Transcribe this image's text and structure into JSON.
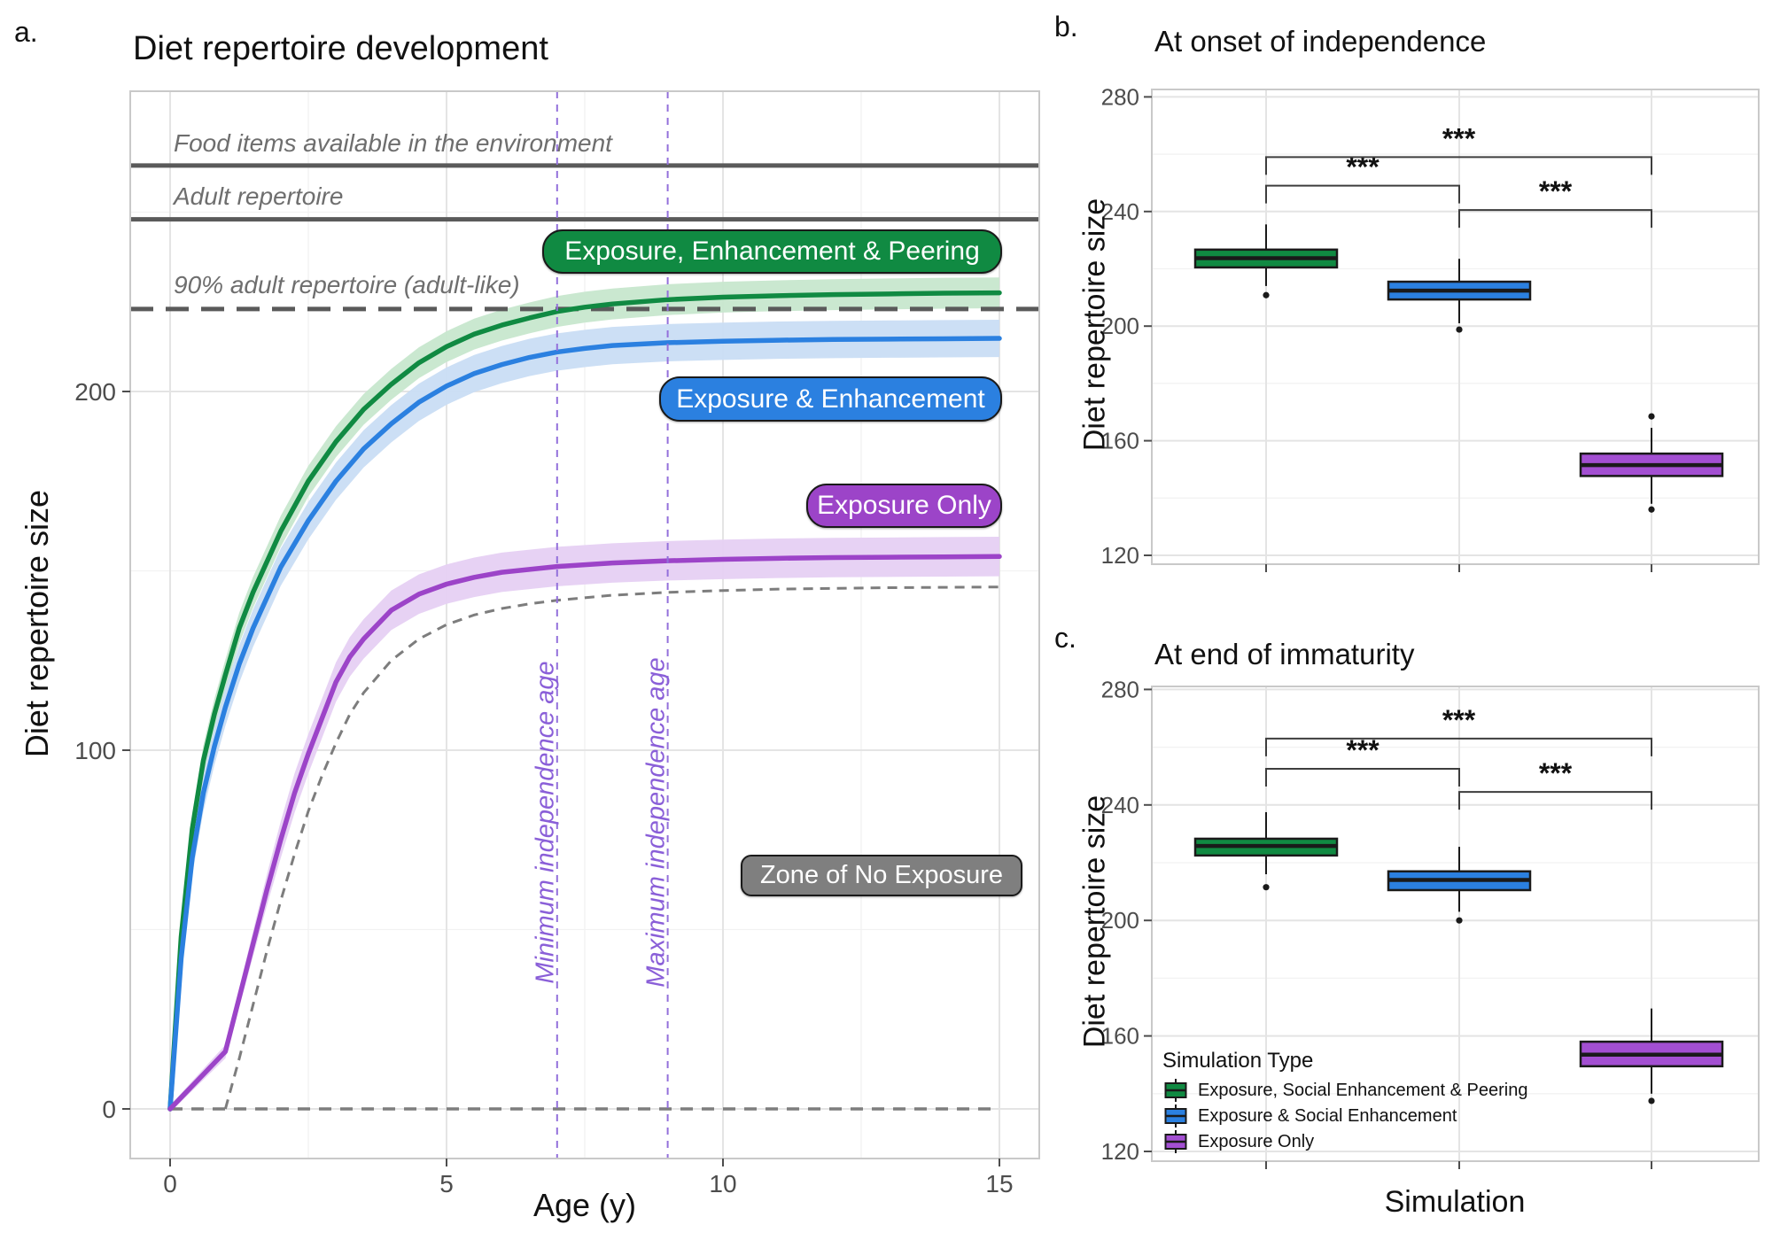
{
  "colors": {
    "green": "#108a42",
    "green_light": "#c7e7cd",
    "blue": "#2b80e0",
    "blue_light": "#c9ddf4",
    "purple": "#9c44c8",
    "purple_light": "#e6d0f3",
    "purple_box": "#a34fd2",
    "independence": "#9370db",
    "independence_text": "#8a5fd8",
    "annotation_gray": "#6e6e6e",
    "line_gray": "#5a5a5a",
    "dash_gray": "#7d7d7d",
    "zone_bg": "#7f7f7f",
    "tick_gray": "#4d4d4d",
    "sig": "#3d3d3d"
  },
  "panels": {
    "a": {
      "letter": "a.",
      "title": "Diet repertoire development",
      "xlabel": "Age (y)",
      "ylabel": "Diet repertoire size",
      "annotations": {
        "food": "Food items available in the environment",
        "adult": "Adult repertoire",
        "ninety": "90% adult repertoire (adult-like)",
        "min_indep": "Minimum independence age",
        "max_indep": "Maximum independence age",
        "zone": "Zone of No Exposure"
      },
      "curve_labels": {
        "green": "Exposure, Enhancement & Peering",
        "blue": "Exposure & Enhancement",
        "purple": "Exposure Only"
      }
    },
    "b": {
      "letter": "b.",
      "title": "At onset of independence",
      "ylabel": "Diet repertoire size"
    },
    "c": {
      "letter": "c.",
      "title": "At end of immaturity",
      "ylabel": "Diet repertoire size",
      "xlabel": "Simulation",
      "legend": {
        "title": "Simulation Type",
        "items": [
          {
            "label": "Exposure, Social Enhancement & Peering"
          },
          {
            "label": "Exposure & Social Enhancement"
          },
          {
            "label": "Exposure Only"
          }
        ]
      }
    }
  },
  "chart_data": [
    {
      "id": "a",
      "type": "line",
      "title": "Diet repertoire development",
      "xlabel": "Age (y)",
      "ylabel": "Diet repertoire size",
      "xlim": [
        -0.7,
        15.7
      ],
      "ylim": [
        -14,
        284
      ],
      "x_ticks": [
        0,
        5,
        10,
        15
      ],
      "y_ticks": [
        0,
        100,
        200
      ],
      "x_minor": [
        2.5,
        7.5,
        12.5
      ],
      "y_minor": [
        50,
        150,
        250
      ],
      "reference_lines": {
        "food_available": 263,
        "adult_repertoire": 248,
        "adult_like_90pct": 223,
        "zero_dashed": 0,
        "min_independence_age": 7,
        "max_independence_age": 9
      },
      "series": [
        {
          "name": "Exposure, Enhancement & Peering",
          "color_key": "green",
          "ribbon_key": "green_light",
          "ribbon": 4.3,
          "style": "solid",
          "points": [
            [
              0,
              0
            ],
            [
              0.2,
              48
            ],
            [
              0.4,
              78
            ],
            [
              0.6,
              97
            ],
            [
              0.8,
              110
            ],
            [
              1,
              121
            ],
            [
              1.25,
              134
            ],
            [
              1.5,
              144
            ],
            [
              2,
              161
            ],
            [
              2.5,
              175
            ],
            [
              3,
              186
            ],
            [
              3.5,
              195
            ],
            [
              4,
              202
            ],
            [
              4.5,
              208
            ],
            [
              5,
              212.5
            ],
            [
              5.5,
              216
            ],
            [
              6,
              218.5
            ],
            [
              6.5,
              220.5
            ],
            [
              7,
              222.3
            ],
            [
              7.5,
              223.5
            ],
            [
              8,
              224.4
            ],
            [
              9,
              225.6
            ],
            [
              10,
              226.3
            ],
            [
              11,
              226.7
            ],
            [
              12,
              227
            ],
            [
              13,
              227.2
            ],
            [
              14,
              227.4
            ],
            [
              15,
              227.5
            ]
          ]
        },
        {
          "name": "Exposure & Enhancement",
          "color_key": "blue",
          "ribbon_key": "blue_light",
          "ribbon": 5.2,
          "style": "solid",
          "points": [
            [
              0,
              0
            ],
            [
              0.2,
              42
            ],
            [
              0.4,
              70
            ],
            [
              0.6,
              88
            ],
            [
              0.8,
              101
            ],
            [
              1,
              112
            ],
            [
              1.25,
              124
            ],
            [
              1.5,
              134
            ],
            [
              2,
              151
            ],
            [
              2.5,
              164
            ],
            [
              3,
              175
            ],
            [
              3.5,
              184
            ],
            [
              4,
              191
            ],
            [
              4.5,
              197
            ],
            [
              5,
              201.5
            ],
            [
              5.5,
              205
            ],
            [
              6,
              207.5
            ],
            [
              6.5,
              209.5
            ],
            [
              7,
              211
            ],
            [
              7.5,
              212
            ],
            [
              8,
              212.8
            ],
            [
              9,
              213.6
            ],
            [
              10,
              214
            ],
            [
              11,
              214.3
            ],
            [
              12,
              214.5
            ],
            [
              13,
              214.6
            ],
            [
              14,
              214.7
            ],
            [
              15,
              214.8
            ]
          ]
        },
        {
          "name": "Exposure Only",
          "color_key": "purple",
          "ribbon_key": "purple_light",
          "ribbon": 5.5,
          "style": "solid",
          "points": [
            [
              0,
              0
            ],
            [
              0.25,
              4
            ],
            [
              0.5,
              8
            ],
            [
              0.75,
              12
            ],
            [
              1,
              16
            ],
            [
              1.25,
              31
            ],
            [
              1.5,
              46
            ],
            [
              1.75,
              61
            ],
            [
              2,
              75
            ],
            [
              2.25,
              88
            ],
            [
              2.5,
              99
            ],
            [
              2.75,
              109
            ],
            [
              3,
              119
            ],
            [
              3.25,
              126
            ],
            [
              3.5,
              131
            ],
            [
              4,
              139
            ],
            [
              4.5,
              143.5
            ],
            [
              5,
              146.3
            ],
            [
              5.5,
              148.2
            ],
            [
              6,
              149.6
            ],
            [
              6.5,
              150.4
            ],
            [
              7,
              151.2
            ],
            [
              8,
              152.2
            ],
            [
              9,
              152.8
            ],
            [
              10,
              153.2
            ],
            [
              11,
              153.5
            ],
            [
              12,
              153.7
            ],
            [
              13,
              153.8
            ],
            [
              14,
              153.9
            ],
            [
              15,
              154
            ]
          ]
        },
        {
          "name": "Zone of No Exposure boundary",
          "color_key": "dash_gray",
          "ribbon": 0,
          "style": "dashed",
          "points": [
            [
              1,
              0
            ],
            [
              1.25,
              14
            ],
            [
              1.5,
              29
            ],
            [
              1.75,
              44
            ],
            [
              2,
              58
            ],
            [
              2.25,
              71
            ],
            [
              2.5,
              83
            ],
            [
              2.75,
              93
            ],
            [
              3,
              102
            ],
            [
              3.25,
              110
            ],
            [
              3.5,
              116
            ],
            [
              4,
              125
            ],
            [
              4.5,
              131
            ],
            [
              5,
              135
            ],
            [
              5.5,
              137.7
            ],
            [
              6,
              139.5
            ],
            [
              6.5,
              140.8
            ],
            [
              7,
              141.8
            ],
            [
              8,
              143.2
            ],
            [
              9,
              144
            ],
            [
              10,
              144.5
            ],
            [
              11,
              144.9
            ],
            [
              12,
              145.1
            ],
            [
              13,
              145.3
            ],
            [
              14,
              145.4
            ],
            [
              15,
              145.5
            ]
          ]
        }
      ]
    },
    {
      "id": "b",
      "type": "boxplot",
      "title": "At onset of independence",
      "ylabel": "Diet repertoire size",
      "ylim": [
        120,
        280
      ],
      "y_ticks": [
        280,
        240,
        200,
        160,
        120
      ],
      "y_minor": [
        140,
        180,
        220,
        260
      ],
      "categories": [
        "Exposure, Social Enhancement & Peering",
        "Exposure & Social Enhancement",
        "Exposure Only"
      ],
      "boxes": [
        {
          "color_key": "green",
          "whisker_low": 214,
          "q1": 220.5,
          "median": 223.7,
          "q3": 226.7,
          "whisker_high": 235.5,
          "outliers": [
            210.8
          ]
        },
        {
          "color_key": "blue",
          "whisker_low": 201,
          "q1": 209.3,
          "median": 212.4,
          "q3": 215.5,
          "whisker_high": 223.5,
          "outliers": [
            198.8
          ]
        },
        {
          "color_key": "purple_box",
          "whisker_low": 138,
          "q1": 147.7,
          "median": 151.5,
          "q3": 155.5,
          "whisker_high": 164.5,
          "outliers": [
            168.5,
            136
          ]
        }
      ],
      "significance": [
        {
          "from": 0,
          "to": 1,
          "y": 249,
          "label": "***"
        },
        {
          "from": 0,
          "to": 2,
          "y": 259,
          "label": "***"
        },
        {
          "from": 1,
          "to": 2,
          "y": 240.5,
          "label": "***"
        }
      ]
    },
    {
      "id": "c",
      "type": "boxplot",
      "title": "At end of immaturity",
      "xlabel": "Simulation",
      "ylabel": "Diet repertoire size",
      "ylim": [
        120,
        280
      ],
      "y_ticks": [
        280,
        240,
        200,
        160,
        120
      ],
      "y_minor": [
        140,
        180,
        220,
        260
      ],
      "categories": [
        "Exposure, Social Enhancement & Peering",
        "Exposure & Social Enhancement",
        "Exposure Only"
      ],
      "boxes": [
        {
          "color_key": "green",
          "whisker_low": 216,
          "q1": 222.5,
          "median": 225.8,
          "q3": 228.3,
          "whisker_high": 237.5,
          "outliers": [
            211.5
          ]
        },
        {
          "color_key": "blue",
          "whisker_low": 203,
          "q1": 210.5,
          "median": 214,
          "q3": 217,
          "whisker_high": 225.5,
          "outliers": [
            200
          ]
        },
        {
          "color_key": "purple_box",
          "whisker_low": 140,
          "q1": 149.5,
          "median": 153.5,
          "q3": 158,
          "whisker_high": 169.5,
          "outliers": [
            137.5
          ]
        }
      ],
      "significance": [
        {
          "from": 0,
          "to": 1,
          "y": 252.5,
          "label": "***"
        },
        {
          "from": 0,
          "to": 2,
          "y": 263,
          "label": "***"
        },
        {
          "from": 1,
          "to": 2,
          "y": 244.5,
          "label": "***"
        }
      ]
    }
  ]
}
